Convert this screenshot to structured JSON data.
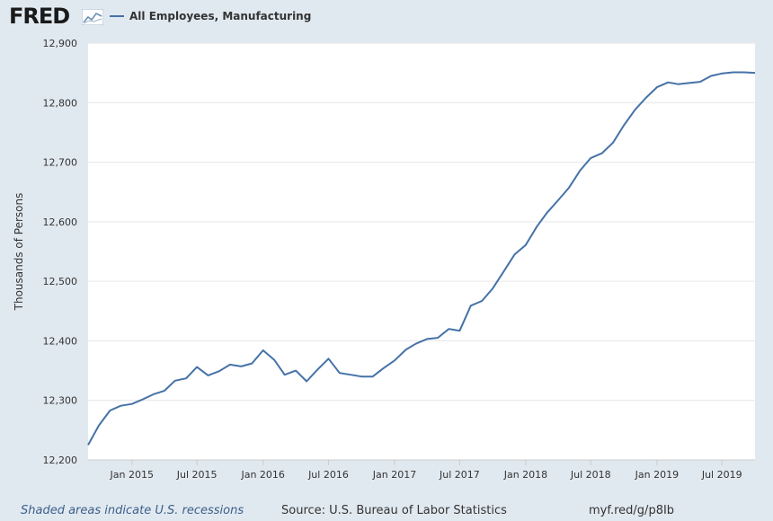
{
  "header": {
    "logo": "FRED",
    "logo_icon": "trend-chart-icon"
  },
  "chart_data": {
    "type": "line",
    "title": "",
    "xlabel": "",
    "ylabel": "Thousands of Persons",
    "ylim": [
      12200,
      12900
    ],
    "yticks": [
      12200,
      12300,
      12400,
      12500,
      12600,
      12700,
      12800,
      12900
    ],
    "ytick_labels": [
      "12,200",
      "12,300",
      "12,400",
      "12,500",
      "12,600",
      "12,700",
      "12,800",
      "12,900"
    ],
    "xlim": [
      "2014-09-01",
      "2019-10-01"
    ],
    "xticks": [
      "2015-01-01",
      "2015-07-01",
      "2016-01-01",
      "2016-07-01",
      "2017-01-01",
      "2017-07-01",
      "2018-01-01",
      "2018-07-01",
      "2019-01-01",
      "2019-07-01"
    ],
    "xtick_labels": [
      "Jan 2015",
      "Jul 2015",
      "Jan 2016",
      "Jul 2016",
      "Jan 2017",
      "Jul 2017",
      "Jan 2018",
      "Jul 2018",
      "Jan 2019",
      "Jul 2019"
    ],
    "grid": true,
    "legend_position": "top-left",
    "colors": {
      "line": "#4572a7",
      "plot_bg": "#ffffff",
      "page_bg": "#e1e9f0",
      "grid": "#e6e6e6"
    },
    "x": [
      "2014-09-01",
      "2014-10-01",
      "2014-11-01",
      "2014-12-01",
      "2015-01-01",
      "2015-02-01",
      "2015-03-01",
      "2015-04-01",
      "2015-05-01",
      "2015-06-01",
      "2015-07-01",
      "2015-08-01",
      "2015-09-01",
      "2015-10-01",
      "2015-11-01",
      "2015-12-01",
      "2016-01-01",
      "2016-02-01",
      "2016-03-01",
      "2016-04-01",
      "2016-05-01",
      "2016-06-01",
      "2016-07-01",
      "2016-08-01",
      "2016-09-01",
      "2016-10-01",
      "2016-11-01",
      "2016-12-01",
      "2017-01-01",
      "2017-02-01",
      "2017-03-01",
      "2017-04-01",
      "2017-05-01",
      "2017-06-01",
      "2017-07-01",
      "2017-08-01",
      "2017-09-01",
      "2017-10-01",
      "2017-11-01",
      "2017-12-01",
      "2018-01-01",
      "2018-02-01",
      "2018-03-01",
      "2018-04-01",
      "2018-05-01",
      "2018-06-01",
      "2018-07-01",
      "2018-08-01",
      "2018-09-01",
      "2018-10-01",
      "2018-11-01",
      "2018-12-01",
      "2019-01-01",
      "2019-02-01",
      "2019-03-01",
      "2019-04-01",
      "2019-05-01",
      "2019-06-01",
      "2019-07-01",
      "2019-08-01",
      "2019-09-01",
      "2019-10-01"
    ],
    "series": [
      {
        "name": "All Employees, Manufacturing",
        "values": [
          12225,
          12258,
          12283,
          12291,
          12294,
          12302,
          12310,
          12316,
          12333,
          12337,
          12356,
          12342,
          12349,
          12360,
          12357,
          12362,
          12384,
          12368,
          12343,
          12350,
          12332,
          12352,
          12370,
          12346,
          12343,
          12340,
          12340,
          12354,
          12367,
          12385,
          12395,
          12403,
          12405,
          12420,
          12417,
          12459,
          12467,
          12488,
          12517,
          12545,
          12561,
          12592,
          12615,
          12636,
          12657,
          12686,
          12707,
          12715,
          12733,
          12762,
          12788,
          12808,
          12826,
          12834,
          12831,
          12833,
          12835,
          12845,
          12849,
          12851,
          12851,
          12850
        ]
      }
    ]
  },
  "footer": {
    "note": "Shaded areas indicate U.S. recessions",
    "source": "Source: U.S. Bureau of Labor Statistics",
    "link": "myf.red/g/p8Ib"
  }
}
